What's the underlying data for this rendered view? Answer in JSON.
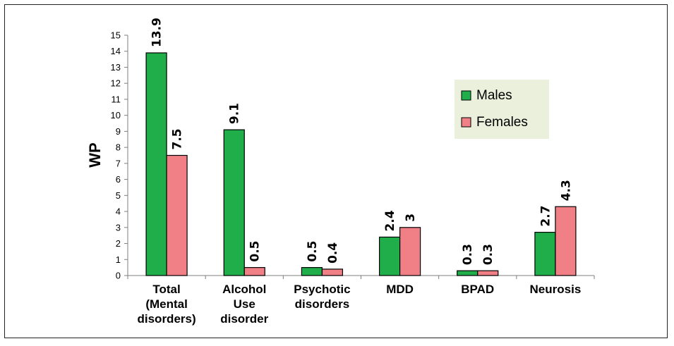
{
  "chart_data": {
    "type": "bar",
    "title": "",
    "xlabel": "",
    "ylabel": "WP",
    "ylim": [
      0,
      15
    ],
    "yticks": [
      0,
      1,
      2,
      3,
      4,
      5,
      6,
      7,
      8,
      9,
      10,
      11,
      12,
      13,
      14,
      15
    ],
    "grid": false,
    "legend_position": "top-right",
    "categories": [
      [
        "Total",
        "(Mental",
        "disorders)"
      ],
      [
        "Alcohol",
        "Use",
        "disorder"
      ],
      [
        "Psychotic",
        "disorders"
      ],
      [
        "MDD"
      ],
      [
        "BPAD"
      ],
      [
        "Neurosis"
      ]
    ],
    "series": [
      {
        "name": "Males",
        "color": "#1fae4a",
        "values": [
          13.9,
          9.1,
          0.5,
          2.4,
          0.3,
          2.7
        ],
        "labels": [
          "13.9",
          "9.1",
          "0.5",
          "2.4",
          "0.3",
          "2.7"
        ]
      },
      {
        "name": "Females",
        "color": "#f07f86",
        "values": [
          7.5,
          0.5,
          0.4,
          3,
          0.3,
          4.3
        ],
        "labels": [
          "7.5",
          "0.5",
          "0.4",
          "3",
          "0.3",
          "4.3"
        ]
      }
    ],
    "legend_bg": "#eaf0dc"
  }
}
